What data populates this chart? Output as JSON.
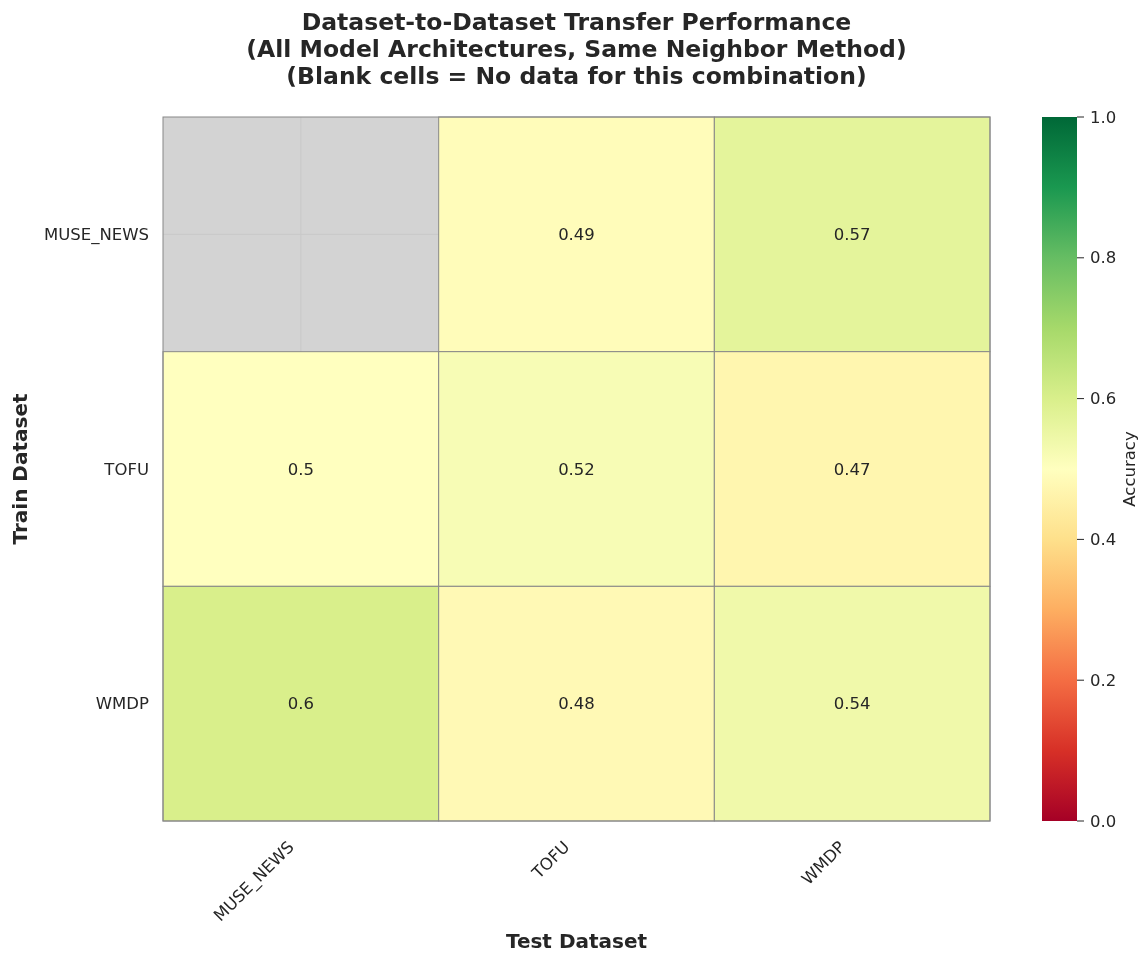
{
  "chart_data": {
    "type": "heatmap",
    "title": "Dataset-to-Dataset Transfer Performance\n(All Model Architectures, Same Neighbor Method)\n(Blank cells = No data for this combination)",
    "xlabel": "Test Dataset",
    "ylabel": "Train Dataset",
    "clabel": "Accuracy",
    "categories": [
      "MUSE_NEWS",
      "TOFU",
      "WMDP"
    ],
    "y_categories": [
      "MUSE_NEWS",
      "TOFU",
      "WMDP"
    ],
    "cells": [
      [
        null,
        0.49,
        0.57
      ],
      [
        0.5,
        0.52,
        0.47
      ],
      [
        0.6,
        0.48,
        0.54
      ]
    ],
    "clim": [
      0,
      1
    ],
    "cticks": [
      {
        "value": 0,
        "label": "0.0"
      },
      0.2,
      0.4,
      0.6,
      0.8,
      {
        "value": 1,
        "label": "1.0"
      }
    ],
    "data_labels": true,
    "grid": true
  }
}
